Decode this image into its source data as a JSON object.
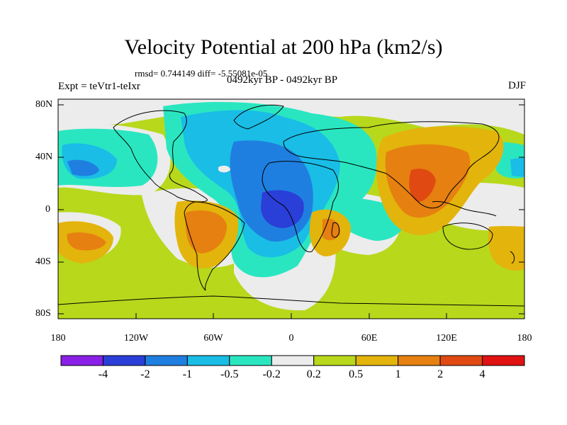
{
  "title": "Velocity Potential at 200 hPa (km2/s)",
  "stats": "rmsd= 0.744149 diff= -5.55081e-05",
  "experiment": "Expt = teVtr1-teIxr",
  "period": "0492kyr BP - 0492kyr BP",
  "season": "DJF",
  "y_ticks": [
    "80N",
    "40N",
    "0",
    "40S",
    "80S"
  ],
  "x_ticks": [
    "180",
    "120W",
    "60W",
    "0",
    "60E",
    "120E",
    "180"
  ],
  "colorbar": {
    "labels": [
      "-4",
      "-2",
      "-1",
      "-0.5",
      "-0.2",
      "0.2",
      "0.5",
      "1",
      "2",
      "4"
    ],
    "colors": [
      "#8a1fe6",
      "#2a3ed8",
      "#1f7fe0",
      "#19bde6",
      "#2ae6c0",
      "#ececec",
      "#b8d81c",
      "#e3b40c",
      "#e68010",
      "#e04a12",
      "#e01212"
    ]
  }
}
